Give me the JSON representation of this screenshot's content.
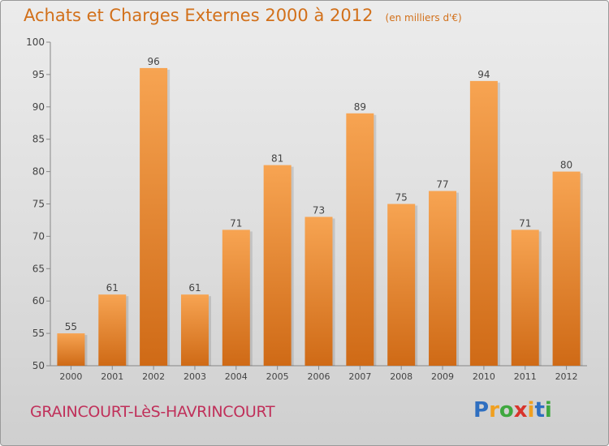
{
  "chart_data": {
    "type": "bar",
    "title": "Achats et Charges Externes 2000 à 2012",
    "subtitle": "(en milliers d'€)",
    "categories": [
      "2000",
      "2001",
      "2002",
      "2003",
      "2004",
      "2005",
      "2006",
      "2007",
      "2008",
      "2009",
      "2010",
      "2011",
      "2012"
    ],
    "values": [
      55,
      61,
      96,
      61,
      71,
      81,
      73,
      89,
      75,
      77,
      94,
      71,
      80
    ],
    "ylim": [
      50,
      100
    ],
    "yticks": [
      50,
      55,
      60,
      65,
      70,
      75,
      80,
      85,
      90,
      95,
      100
    ],
    "grid": false,
    "bar_color_top": "#f7a452",
    "bar_color_bottom": "#cf6a16"
  },
  "footer": {
    "commune": "GRAINCOURT-LèS-HAVRINCOURT"
  },
  "logo": {
    "letters": [
      "P",
      "r",
      "o",
      "x",
      "i",
      "t",
      "i"
    ],
    "colors": [
      "#2f6fc0",
      "#f0a020",
      "#3fa83f",
      "#d8342c",
      "#f0a020",
      "#2f6fc0",
      "#3fa83f"
    ]
  }
}
